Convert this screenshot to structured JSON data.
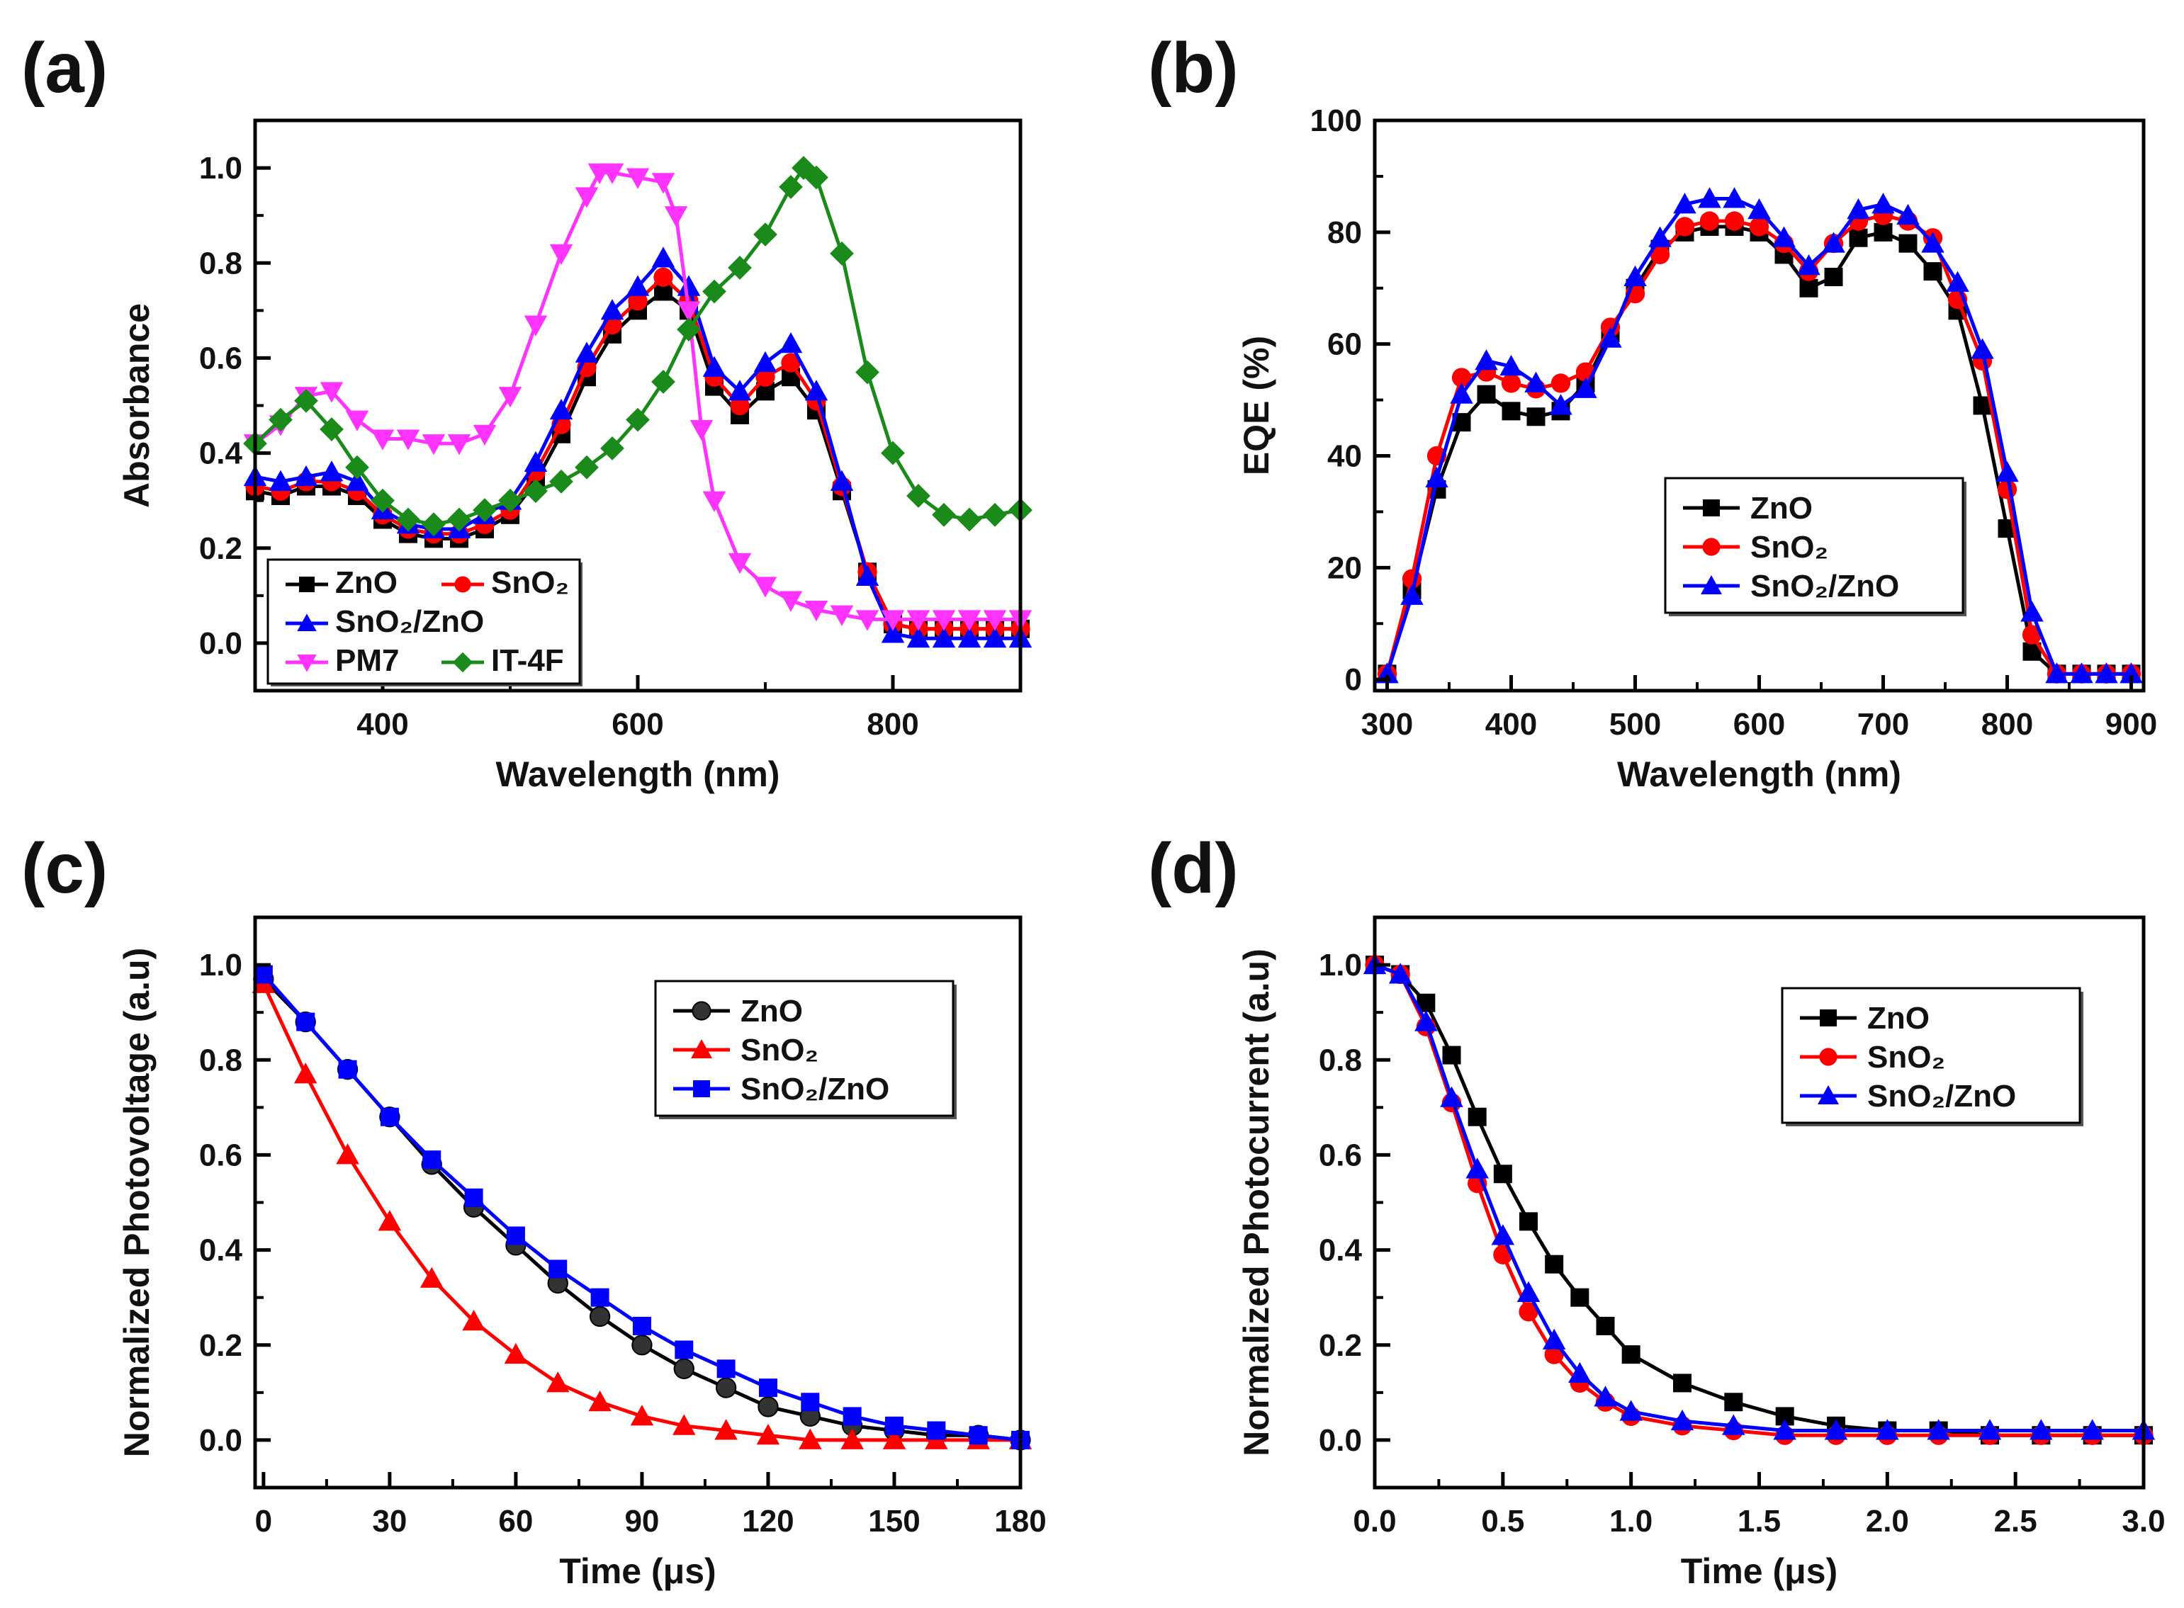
{
  "chart_data": [
    {
      "panel": "(a)",
      "type": "line",
      "xlabel": "Wavelength (nm)",
      "ylabel": "Absorbance",
      "xlim": [
        300,
        900
      ],
      "ylim": [
        -0.1,
        1.1
      ],
      "xticks": [
        400,
        600,
        800
      ],
      "xtick_labels": [
        "400",
        "600",
        "800"
      ],
      "yticks": [
        0.0,
        0.2,
        0.4,
        0.6,
        0.8,
        1.0
      ],
      "ytick_labels": [
        "0.0",
        "0.2",
        "0.4",
        "0.6",
        "0.8",
        "1.0"
      ],
      "legend_position": "bottom-left",
      "series": [
        {
          "name": "ZnO",
          "color": "#000000",
          "marker": "square",
          "x": [
            300,
            320,
            340,
            360,
            380,
            400,
            420,
            440,
            460,
            480,
            500,
            520,
            540,
            560,
            580,
            600,
            620,
            640,
            660,
            680,
            700,
            720,
            740,
            760,
            780,
            800,
            820,
            840,
            860,
            880,
            900
          ],
          "y": [
            0.32,
            0.31,
            0.33,
            0.33,
            0.31,
            0.26,
            0.23,
            0.22,
            0.22,
            0.24,
            0.27,
            0.34,
            0.44,
            0.56,
            0.65,
            0.7,
            0.74,
            0.7,
            0.54,
            0.48,
            0.53,
            0.56,
            0.49,
            0.32,
            0.15,
            0.04,
            0.03,
            0.03,
            0.03,
            0.03,
            0.03
          ]
        },
        {
          "name": "SnO₂",
          "color": "#ff0000",
          "marker": "circle",
          "x": [
            300,
            320,
            340,
            360,
            380,
            400,
            420,
            440,
            460,
            480,
            500,
            520,
            540,
            560,
            580,
            600,
            620,
            640,
            660,
            680,
            700,
            720,
            740,
            760,
            780,
            800,
            820,
            840,
            860,
            880,
            900
          ],
          "y": [
            0.33,
            0.32,
            0.34,
            0.34,
            0.32,
            0.27,
            0.24,
            0.23,
            0.23,
            0.25,
            0.28,
            0.36,
            0.46,
            0.58,
            0.67,
            0.72,
            0.77,
            0.72,
            0.56,
            0.5,
            0.56,
            0.59,
            0.51,
            0.33,
            0.15,
            0.04,
            0.03,
            0.03,
            0.03,
            0.03,
            0.03
          ]
        },
        {
          "name": "SnO₂/ZnO",
          "color": "#0000ff",
          "marker": "triangle",
          "x": [
            300,
            320,
            340,
            360,
            380,
            400,
            420,
            440,
            460,
            480,
            500,
            520,
            540,
            560,
            580,
            600,
            620,
            640,
            660,
            680,
            700,
            720,
            740,
            760,
            780,
            800,
            820,
            840,
            860,
            880,
            900
          ],
          "y": [
            0.35,
            0.34,
            0.35,
            0.36,
            0.34,
            0.28,
            0.25,
            0.24,
            0.24,
            0.27,
            0.3,
            0.38,
            0.49,
            0.61,
            0.7,
            0.75,
            0.81,
            0.75,
            0.58,
            0.53,
            0.59,
            0.63,
            0.53,
            0.34,
            0.14,
            0.02,
            0.01,
            0.01,
            0.01,
            0.01,
            0.01
          ]
        },
        {
          "name": "PM7",
          "color": "#ff33ff",
          "marker": "triangle-down",
          "x": [
            300,
            320,
            340,
            360,
            380,
            400,
            420,
            440,
            460,
            480,
            500,
            520,
            540,
            560,
            570,
            580,
            600,
            620,
            630,
            640,
            650,
            660,
            680,
            700,
            720,
            740,
            760,
            780,
            800,
            820,
            840,
            860,
            880,
            900
          ],
          "y": [
            0.42,
            0.46,
            0.52,
            0.53,
            0.47,
            0.43,
            0.43,
            0.42,
            0.42,
            0.44,
            0.52,
            0.67,
            0.82,
            0.94,
            0.99,
            0.99,
            0.98,
            0.97,
            0.9,
            0.7,
            0.45,
            0.3,
            0.17,
            0.12,
            0.09,
            0.07,
            0.06,
            0.05,
            0.05,
            0.05,
            0.05,
            0.05,
            0.05,
            0.05
          ]
        },
        {
          "name": "IT-4F",
          "color": "#1a8a1a",
          "marker": "diamond",
          "x": [
            300,
            320,
            340,
            360,
            380,
            400,
            420,
            440,
            460,
            480,
            500,
            520,
            540,
            560,
            580,
            600,
            620,
            640,
            660,
            680,
            700,
            720,
            730,
            740,
            760,
            780,
            800,
            820,
            840,
            860,
            880,
            900
          ],
          "y": [
            0.42,
            0.47,
            0.51,
            0.45,
            0.37,
            0.3,
            0.26,
            0.25,
            0.26,
            0.28,
            0.3,
            0.32,
            0.34,
            0.37,
            0.41,
            0.47,
            0.55,
            0.66,
            0.74,
            0.79,
            0.86,
            0.96,
            1.0,
            0.98,
            0.82,
            0.57,
            0.4,
            0.31,
            0.27,
            0.26,
            0.27,
            0.28
          ]
        }
      ]
    },
    {
      "panel": "(b)",
      "type": "line",
      "xlabel": "Wavelength (nm)",
      "ylabel": "EQE (%)",
      "xlim": [
        290,
        910
      ],
      "ylim": [
        -2,
        100
      ],
      "xticks": [
        300,
        400,
        500,
        600,
        700,
        800,
        900
      ],
      "xtick_labels": [
        "300",
        "400",
        "500",
        "600",
        "700",
        "800",
        "900"
      ],
      "yticks": [
        0,
        20,
        40,
        60,
        80,
        100
      ],
      "ytick_labels": [
        "0",
        "20",
        "40",
        "60",
        "80",
        "100"
      ],
      "legend_position": "center-left",
      "series": [
        {
          "name": "ZnO",
          "color": "#000000",
          "marker": "square",
          "x": [
            300,
            320,
            340,
            360,
            380,
            400,
            420,
            440,
            460,
            480,
            500,
            520,
            540,
            560,
            580,
            600,
            620,
            640,
            660,
            680,
            700,
            720,
            740,
            760,
            780,
            800,
            820,
            840,
            860,
            880,
            900
          ],
          "y": [
            1,
            16,
            34,
            46,
            51,
            48,
            47,
            48,
            53,
            62,
            70,
            77,
            80,
            81,
            81,
            80,
            76,
            70,
            72,
            79,
            80,
            78,
            73,
            66,
            49,
            27,
            5,
            1,
            1,
            1,
            1
          ]
        },
        {
          "name": "SnO₂",
          "color": "#ff0000",
          "marker": "circle",
          "x": [
            300,
            320,
            340,
            360,
            380,
            400,
            420,
            440,
            460,
            480,
            500,
            520,
            540,
            560,
            580,
            600,
            620,
            640,
            660,
            680,
            700,
            720,
            740,
            760,
            780,
            800,
            820,
            840,
            860,
            880,
            900
          ],
          "y": [
            1,
            18,
            40,
            54,
            55,
            53,
            52,
            53,
            55,
            63,
            69,
            76,
            81,
            82,
            82,
            81,
            78,
            73,
            78,
            82,
            83,
            82,
            79,
            68,
            57,
            34,
            8,
            1,
            1,
            1,
            1
          ]
        },
        {
          "name": "SnO₂/ZnO",
          "color": "#0000ff",
          "marker": "triangle",
          "x": [
            300,
            320,
            340,
            360,
            380,
            400,
            420,
            440,
            460,
            480,
            500,
            520,
            540,
            560,
            580,
            600,
            620,
            640,
            660,
            680,
            700,
            720,
            740,
            760,
            780,
            800,
            820,
            840,
            860,
            880,
            900
          ],
          "y": [
            1,
            15,
            36,
            51,
            57,
            56,
            53,
            49,
            52,
            61,
            72,
            79,
            85,
            86,
            86,
            84,
            79,
            74,
            78,
            84,
            85,
            83,
            78,
            71,
            59,
            37,
            12,
            1,
            1,
            1,
            1
          ]
        }
      ]
    },
    {
      "panel": "(c)",
      "type": "line",
      "xlabel": "Time (μs)",
      "ylabel": "Normalized  Photovoltage (a.u)",
      "xlim": [
        -2,
        180
      ],
      "ylim": [
        -0.1,
        1.1
      ],
      "xticks": [
        0,
        30,
        60,
        90,
        120,
        150,
        180
      ],
      "xtick_labels": [
        "0",
        "30",
        "60",
        "90",
        "120",
        "150",
        "180"
      ],
      "yticks": [
        0.0,
        0.2,
        0.4,
        0.6,
        0.8,
        1.0
      ],
      "ytick_labels": [
        "0.0",
        "0.2",
        "0.4",
        "0.6",
        "0.8",
        "1.0"
      ],
      "legend_position": "top-right",
      "series": [
        {
          "name": "ZnO",
          "color": "#000000",
          "marker": "sphere",
          "x": [
            0,
            10,
            20,
            30,
            40,
            50,
            60,
            70,
            80,
            90,
            100,
            110,
            120,
            130,
            140,
            150,
            160,
            170,
            180
          ],
          "y": [
            0.97,
            0.88,
            0.78,
            0.68,
            0.58,
            0.49,
            0.41,
            0.33,
            0.26,
            0.2,
            0.15,
            0.11,
            0.07,
            0.05,
            0.03,
            0.02,
            0.01,
            0.01,
            0.0
          ]
        },
        {
          "name": "SnO₂",
          "color": "#ff0000",
          "marker": "triangle",
          "x": [
            0,
            10,
            20,
            30,
            40,
            50,
            60,
            70,
            80,
            90,
            100,
            110,
            120,
            130,
            140,
            150,
            160,
            170,
            180
          ],
          "y": [
            0.96,
            0.77,
            0.6,
            0.46,
            0.34,
            0.25,
            0.18,
            0.12,
            0.08,
            0.05,
            0.03,
            0.02,
            0.01,
            0.0,
            0.0,
            0.0,
            0.0,
            0.0,
            0.0
          ]
        },
        {
          "name": "SnO₂/ZnO",
          "color": "#0000ff",
          "marker": "square",
          "x": [
            0,
            10,
            20,
            30,
            40,
            50,
            60,
            70,
            80,
            90,
            100,
            110,
            120,
            130,
            140,
            150,
            160,
            170,
            180
          ],
          "y": [
            0.98,
            0.88,
            0.78,
            0.68,
            0.59,
            0.51,
            0.43,
            0.36,
            0.3,
            0.24,
            0.19,
            0.15,
            0.11,
            0.08,
            0.05,
            0.03,
            0.02,
            0.01,
            0.0
          ]
        }
      ]
    },
    {
      "panel": "(d)",
      "type": "line",
      "xlabel": "Time (μs)",
      "ylabel": "Normalized  Photocurrent (a.u)",
      "xlim": [
        0,
        3.0
      ],
      "ylim": [
        -0.1,
        1.1
      ],
      "xticks": [
        0.0,
        0.5,
        1.0,
        1.5,
        2.0,
        2.5,
        3.0
      ],
      "xtick_labels": [
        "0.0",
        "0.5",
        "1.0",
        "1.5",
        "2.0",
        "2.5",
        "3.0"
      ],
      "yticks": [
        0.0,
        0.2,
        0.4,
        0.6,
        0.8,
        1.0
      ],
      "ytick_labels": [
        "0.0",
        "0.2",
        "0.4",
        "0.6",
        "0.8",
        "1.0"
      ],
      "legend_position": "top-right",
      "series": [
        {
          "name": "ZnO",
          "color": "#000000",
          "marker": "square",
          "x": [
            0.0,
            0.1,
            0.2,
            0.3,
            0.4,
            0.5,
            0.6,
            0.7,
            0.8,
            0.9,
            1.0,
            1.2,
            1.4,
            1.6,
            1.8,
            2.0,
            2.2,
            2.4,
            2.6,
            2.8,
            3.0
          ],
          "y": [
            1.0,
            0.98,
            0.92,
            0.81,
            0.68,
            0.56,
            0.46,
            0.37,
            0.3,
            0.24,
            0.18,
            0.12,
            0.08,
            0.05,
            0.03,
            0.02,
            0.02,
            0.01,
            0.01,
            0.01,
            0.01
          ]
        },
        {
          "name": "SnO₂",
          "color": "#ff0000",
          "marker": "circle",
          "x": [
            0.0,
            0.1,
            0.2,
            0.3,
            0.4,
            0.5,
            0.6,
            0.7,
            0.8,
            0.9,
            1.0,
            1.2,
            1.4,
            1.6,
            1.8,
            2.0,
            2.2,
            2.4,
            2.6,
            2.8,
            3.0
          ],
          "y": [
            1.0,
            0.98,
            0.87,
            0.71,
            0.54,
            0.39,
            0.27,
            0.18,
            0.12,
            0.08,
            0.05,
            0.03,
            0.02,
            0.01,
            0.01,
            0.01,
            0.01,
            0.01,
            0.01,
            0.01,
            0.01
          ]
        },
        {
          "name": "SnO₂/ZnO",
          "color": "#0000ff",
          "marker": "triangle",
          "x": [
            0.0,
            0.1,
            0.2,
            0.3,
            0.4,
            0.5,
            0.6,
            0.7,
            0.8,
            0.9,
            1.0,
            1.2,
            1.4,
            1.6,
            1.8,
            2.0,
            2.2,
            2.4,
            2.6,
            2.8,
            3.0
          ],
          "y": [
            1.0,
            0.98,
            0.88,
            0.72,
            0.57,
            0.43,
            0.31,
            0.21,
            0.14,
            0.09,
            0.06,
            0.04,
            0.03,
            0.02,
            0.02,
            0.02,
            0.02,
            0.02,
            0.02,
            0.02,
            0.02
          ]
        }
      ]
    }
  ]
}
